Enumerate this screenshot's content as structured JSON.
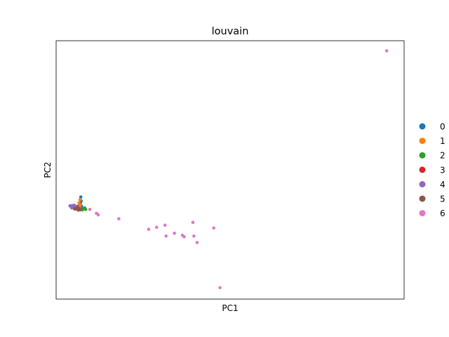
{
  "chart_data": {
    "type": "scatter",
    "title": "louvain",
    "xlabel": "PC1",
    "ylabel": "PC2",
    "xlim": [
      0,
      100
    ],
    "ylim": [
      0,
      100
    ],
    "grid": false,
    "ticks": false,
    "legend": "right",
    "series": [
      {
        "name": "0",
        "color": "#1f77b4",
        "points": [
          [
            7.1,
            39.5
          ],
          [
            7.2,
            38.0
          ],
          [
            7.0,
            37.2
          ],
          [
            6.8,
            36.6
          ],
          [
            7.3,
            36.0
          ],
          [
            6.6,
            35.4
          ],
          [
            7.4,
            35.0
          ],
          [
            6.4,
            34.8
          ]
        ]
      },
      {
        "name": "1",
        "color": "#ff7f0e",
        "points": [
          [
            6.9,
            38.5
          ],
          [
            6.6,
            37.3
          ],
          [
            7.0,
            36.4
          ],
          [
            6.2,
            35.8
          ],
          [
            6.8,
            35.2
          ],
          [
            5.8,
            35.1
          ],
          [
            6.4,
            34.4
          ],
          [
            5.5,
            34.9
          ]
        ]
      },
      {
        "name": "2",
        "color": "#2ca02c",
        "points": [
          [
            8.5,
            34.7
          ],
          [
            7.9,
            35.0
          ],
          [
            7.5,
            34.5
          ],
          [
            8.2,
            35.3
          ]
        ]
      },
      {
        "name": "3",
        "color": "#d62728",
        "points": [
          [
            6.3,
            35.3
          ],
          [
            6.0,
            35.9
          ],
          [
            5.6,
            35.6
          ],
          [
            6.7,
            34.9
          ],
          [
            5.3,
            35.7
          ]
        ]
      },
      {
        "name": "4",
        "color": "#9467bd",
        "points": [
          [
            4.2,
            35.9
          ],
          [
            4.6,
            36.2
          ],
          [
            4.9,
            35.6
          ],
          [
            5.2,
            36.3
          ],
          [
            4.5,
            35.3
          ],
          [
            5.4,
            35.1
          ],
          [
            5.8,
            35.7
          ],
          [
            4.0,
            36.1
          ],
          [
            5.0,
            36.0
          ],
          [
            6.0,
            35.0
          ]
        ]
      },
      {
        "name": "5",
        "color": "#8c564b",
        "points": [
          [
            5.7,
            35.1
          ],
          [
            6.1,
            34.7
          ],
          [
            6.5,
            34.6
          ],
          [
            5.3,
            34.9
          ],
          [
            6.9,
            34.6
          ],
          [
            6.3,
            35.3
          ]
        ]
      },
      {
        "name": "6",
        "color": "#e377c2",
        "points": [
          [
            95.0,
            96.1
          ],
          [
            9.7,
            34.7
          ],
          [
            11.6,
            33.2
          ],
          [
            12.1,
            32.6
          ],
          [
            18.0,
            31.1
          ],
          [
            26.6,
            27.0
          ],
          [
            28.9,
            27.8
          ],
          [
            31.3,
            28.6
          ],
          [
            31.6,
            24.4
          ],
          [
            34.0,
            25.5
          ],
          [
            36.3,
            24.7
          ],
          [
            36.8,
            24.1
          ],
          [
            39.3,
            29.7
          ],
          [
            39.6,
            24.4
          ],
          [
            40.5,
            21.9
          ],
          [
            45.3,
            27.5
          ],
          [
            47.1,
            4.4
          ]
        ]
      }
    ]
  }
}
